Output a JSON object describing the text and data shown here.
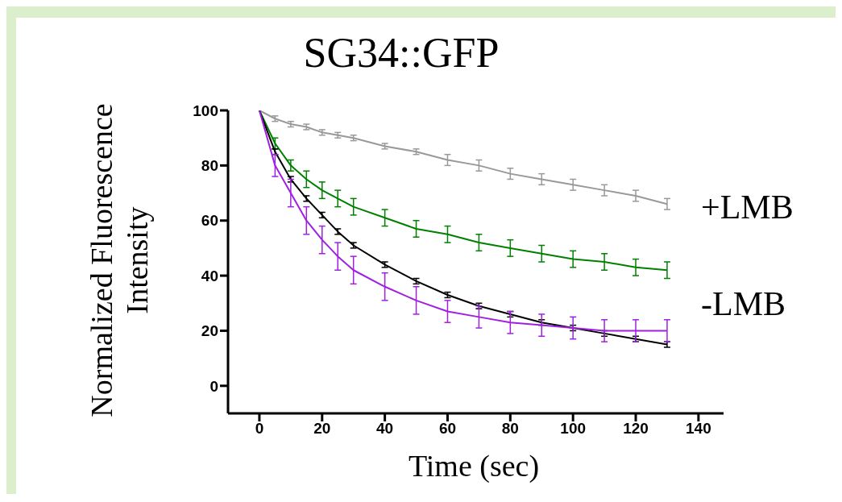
{
  "chart_data": {
    "type": "line",
    "title": "SG34::GFP",
    "xlabel": "Time (sec)",
    "ylabel": "Normalized Fluorescence Intensity",
    "x": [
      0,
      5,
      10,
      15,
      20,
      25,
      30,
      40,
      50,
      60,
      70,
      80,
      90,
      100,
      110,
      120,
      130
    ],
    "series": [
      {
        "color": "#999999",
        "values": [
          100,
          97,
          95,
          94,
          92,
          91,
          90,
          87,
          85,
          82,
          80,
          77,
          75,
          73,
          71,
          69,
          66
        ],
        "errors": [
          0,
          1,
          1,
          1,
          1,
          1,
          1,
          1,
          1,
          2,
          2,
          2,
          2,
          2,
          2,
          2,
          2
        ]
      },
      {
        "color": "#008000",
        "values": [
          100,
          88,
          80,
          75,
          71,
          68,
          65,
          61,
          57,
          55,
          52,
          50,
          48,
          46,
          45,
          43,
          42
        ],
        "errors": [
          0,
          2,
          2,
          3,
          3,
          3,
          3,
          3,
          3,
          3,
          3,
          3,
          3,
          3,
          3,
          3,
          3
        ]
      },
      {
        "color": "#000000",
        "values": [
          100,
          85,
          75,
          68,
          62,
          56,
          51,
          44,
          38,
          33,
          29,
          26,
          23,
          21,
          19,
          17,
          15
        ],
        "errors": [
          0,
          1,
          1,
          1,
          1,
          1,
          1,
          1,
          1,
          1,
          1,
          1,
          1,
          1,
          1,
          1,
          1
        ]
      },
      {
        "color": "#a020e0",
        "values": [
          100,
          80,
          70,
          60,
          53,
          47,
          42,
          36,
          31,
          27,
          25,
          23,
          22,
          21,
          20,
          20,
          20
        ],
        "errors": [
          0,
          4,
          5,
          5,
          5,
          5,
          5,
          5,
          5,
          4,
          4,
          4,
          4,
          4,
          4,
          4,
          4
        ]
      }
    ],
    "xlim": [
      -10,
      148
    ],
    "xticks": [
      0,
      20,
      40,
      60,
      80,
      100,
      120,
      140
    ],
    "ylim": [
      -10,
      100
    ],
    "yticks": [
      0,
      20,
      40,
      60,
      80,
      100
    ],
    "grid": false,
    "annotations": [
      "+LMB",
      "-LMB"
    ]
  }
}
